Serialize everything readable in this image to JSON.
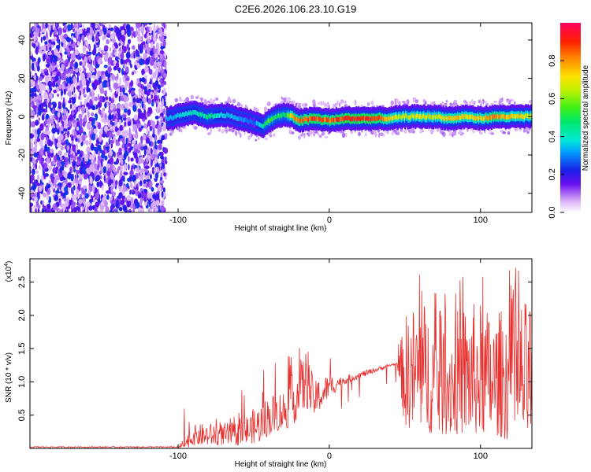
{
  "chart_data": [
    {
      "type": "heatmap",
      "title": "C2E6.2026.106.23.10.G19",
      "xlabel": "Height of straight line (km)",
      "ylabel": "Frequency (Hz)",
      "xlim": [
        -198,
        134
      ],
      "ylim": [
        -50,
        49
      ],
      "x_ticks": [
        -100,
        0,
        100
      ],
      "x_tick_labels": [
        "-100",
        "0",
        "100"
      ],
      "y_ticks": [
        -40,
        -20,
        0,
        20,
        40
      ],
      "y_tick_labels": [
        "-40",
        "-20",
        "0",
        "20",
        "40"
      ],
      "noise_region_x": [
        -198,
        -108
      ],
      "signal_region_x": [
        -108,
        134
      ],
      "signal_band": {
        "x": [
          -108,
          -90,
          -80,
          -70,
          -60,
          -50,
          -45,
          -40,
          -35,
          -30,
          -25,
          -20,
          -10,
          0,
          10,
          20,
          30,
          40,
          50,
          60,
          70,
          80,
          90,
          100,
          110,
          120,
          134
        ],
        "center_hz": [
          -1,
          2,
          0,
          1,
          -1,
          -3,
          -5,
          -2,
          0,
          1,
          0,
          -2,
          -1,
          -2,
          -1,
          -1,
          -1,
          -1,
          0,
          0,
          0,
          -1,
          0,
          -1,
          0,
          0,
          0
        ],
        "peak_amplitude": [
          0.35,
          0.45,
          0.5,
          0.4,
          0.35,
          0.3,
          0.45,
          0.6,
          0.55,
          0.5,
          0.8,
          0.9,
          0.95,
          0.9,
          0.98,
          0.98,
          0.95,
          0.75,
          0.7,
          0.75,
          0.7,
          0.8,
          0.75,
          0.8,
          0.85,
          0.8,
          0.7
        ]
      },
      "colorbar": {
        "label": "Normalized spectral amplitude",
        "range": [
          0.0,
          1.0
        ],
        "ticks": [
          0.0,
          0.2,
          0.4,
          0.6,
          0.8
        ],
        "tick_labels": [
          "0.0",
          "0.2",
          "0.4",
          "0.6",
          "0.8"
        ]
      }
    },
    {
      "type": "line",
      "title": "",
      "xlabel": "Height of straight line (km)",
      "ylabel": "SNR (10 * v/v)",
      "scale_note": "(x10",
      "scale_exponent": "4",
      "xlim": [
        -198,
        134
      ],
      "ylim": [
        0,
        2.85
      ],
      "x_ticks": [
        -100,
        0,
        100
      ],
      "x_tick_labels": [
        "-100",
        "0",
        "100"
      ],
      "y_ticks": [
        0.5,
        1.0,
        1.5,
        2.0,
        2.5
      ],
      "y_tick_labels": [
        "0.5",
        "1.0",
        "1.5",
        "2.0",
        "2.5"
      ],
      "series_color": "#e8312f",
      "envelope": {
        "x": [
          -198,
          -100,
          -95,
          -90,
          -80,
          -70,
          -60,
          -50,
          -45,
          -40,
          -30,
          -25,
          -20,
          -15,
          -10,
          -5,
          0,
          10,
          20,
          30,
          40,
          45,
          50,
          60,
          70,
          80,
          90,
          100,
          110,
          120,
          134
        ],
        "low": [
          0.0,
          0.0,
          0.0,
          0.05,
          0.05,
          0.05,
          0.05,
          0.08,
          0.1,
          0.2,
          0.3,
          0.3,
          0.5,
          0.6,
          0.5,
          0.6,
          0.8,
          0.9,
          1.0,
          1.1,
          1.2,
          1.25,
          0.3,
          0.3,
          0.2,
          0.2,
          0.2,
          0.2,
          0.2,
          0.1,
          0.1
        ],
        "high": [
          0.03,
          0.03,
          0.18,
          0.35,
          0.38,
          0.38,
          0.4,
          0.6,
          0.7,
          0.8,
          0.9,
          1.1,
          1.3,
          1.5,
          1.0,
          1.1,
          1.1,
          1.15,
          1.2,
          1.25,
          1.3,
          1.3,
          2.0,
          2.3,
          2.0,
          2.0,
          2.2,
          2.2,
          2.0,
          2.3,
          2.2
        ]
      }
    }
  ]
}
